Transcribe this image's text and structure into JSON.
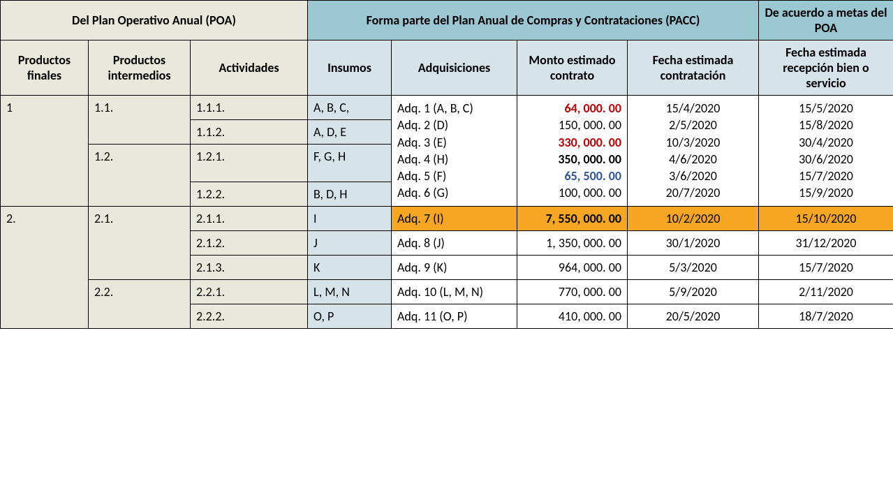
{
  "colors": {
    "poa_header_bg": "#eae8dc",
    "pacc_header_bg": "#9bc7d3",
    "pacc_sub_bg": "#d6e3e9",
    "highlight_bg": "#f5a623",
    "red_text": "#c00000",
    "blue_text": "#2f5496",
    "black_text": "#000000"
  },
  "header": {
    "poa": "Del Plan Operativo Anual (POA)",
    "pacc": "Forma parte del Plan  Anual de Compras y Contrataciones (PACC)",
    "meta": "De acuerdo a metas del POA"
  },
  "subheader": {
    "prod_finales": "Productos finales",
    "prod_intermedios": "Productos intermedios",
    "actividades": "Actividades",
    "insumos": "Insumos",
    "adquisiciones": "Adquisiciones",
    "monto": "Monto estimado contrato",
    "fecha_contrat": "Fecha estimada contratación",
    "fecha_recep": "Fecha estimada recepción bien o servicio"
  },
  "col_widths": {
    "c1": 126,
    "c2": 146,
    "c3": 168,
    "c4": 120,
    "c5": 180,
    "c6": 158,
    "c7": 188,
    "c8": 193
  },
  "block1": {
    "prod_final": "1",
    "intermedios": [
      "1.1.",
      "1.2."
    ],
    "actividades": [
      "1.1.1.",
      "1.1.2.",
      "1.2.1.",
      "1.2.2."
    ],
    "insumos": [
      "A, B, C,",
      "A, D, E",
      "F, G, H",
      "B, D, H"
    ],
    "adquisiciones": [
      "Adq. 1 (A, B, C)",
      "Adq. 2 (D)",
      "Adq. 3 (E)",
      "Adq. 4 (H)",
      "Adq. 5 (F)",
      "Adq. 6 (G)"
    ],
    "montos": [
      {
        "text": "64, 000. 00",
        "color": "#c00000",
        "bold": true
      },
      {
        "text": "150, 000. 00",
        "color": "#000000",
        "bold": false
      },
      {
        "text": "330, 000. 00",
        "color": "#c00000",
        "bold": true
      },
      {
        "text": "350, 000. 00",
        "color": "#000000",
        "bold": true
      },
      {
        "text": "65, 500. 00",
        "color": "#2f5496",
        "bold": true
      },
      {
        "text": "100, 000. 00",
        "color": "#000000",
        "bold": false
      }
    ],
    "fechas_contrat": [
      "15/4/2020",
      "2/5/2020",
      "10/3/2020",
      "4/6/2020",
      "3/6/2020",
      "20/7/2020"
    ],
    "fechas_recep": [
      "15/5/2020",
      "15/8/2020",
      "30/4/2020",
      "30/6/2020",
      "15/7/2020",
      "15/9/2020"
    ]
  },
  "block2": {
    "prod_final": "2.",
    "rows": [
      {
        "inter": "2.1.",
        "inter_rowspan": 3,
        "act": "2.1.1.",
        "insumo": "I",
        "adq": "Adq. 7 (I)",
        "monto": "7, 550, 000. 00",
        "fc": "10/2/2020",
        "fr": "15/10/2020",
        "highlight": true,
        "monto_bold": true
      },
      {
        "inter": "",
        "act": "2.1.2.",
        "insumo": "J",
        "adq": "Adq. 8 (J)",
        "monto": "1, 350, 000. 00",
        "fc": "30/1/2020",
        "fr": "31/12/2020",
        "highlight": false,
        "monto_bold": false
      },
      {
        "inter": "",
        "act": "2.1.3.",
        "insumo": "K",
        "adq": "Adq. 9 (K)",
        "monto": "964, 000. 00",
        "fc": "5/3/2020",
        "fr": "15/7/2020",
        "highlight": false,
        "monto_bold": false
      },
      {
        "inter": "2.2.",
        "inter_rowspan": 2,
        "act": "2.2.1.",
        "insumo": "L, M, N",
        "adq": "Adq. 10 (L, M, N)",
        "monto": "770, 000. 00",
        "fc": "5/9/2020",
        "fr": "2/11/2020",
        "highlight": false,
        "monto_bold": false
      },
      {
        "inter": "",
        "act": "2.2.2.",
        "insumo": "O, P",
        "adq": "Adq. 11 (O, P)",
        "monto": "410, 000. 00",
        "fc": "20/5/2020",
        "fr": "18/7/2020",
        "highlight": false,
        "monto_bold": false
      }
    ]
  }
}
